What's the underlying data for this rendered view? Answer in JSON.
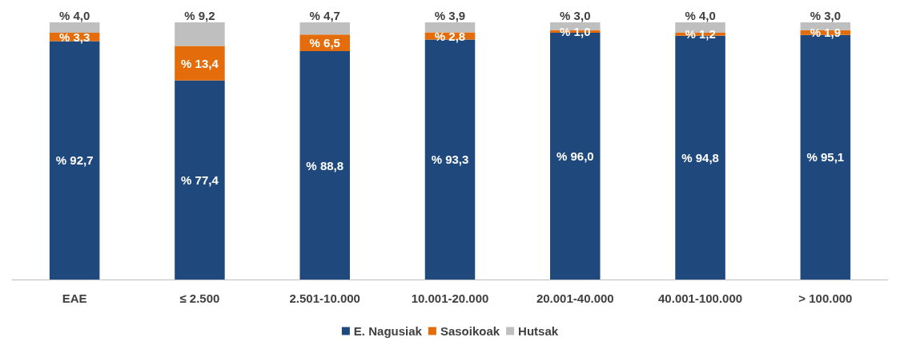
{
  "chart_data": {
    "type": "bar",
    "stacked": true,
    "categories": [
      "EAE",
      "≤ 2.500",
      "2.501-10.000",
      "10.001-20.000",
      "20.001-40.000",
      "40.001-100.000",
      "> 100.000"
    ],
    "series": [
      {
        "name": "E. Nagusiak",
        "color": "#1f497d",
        "values": [
          92.7,
          77.4,
          88.8,
          93.3,
          96.0,
          94.8,
          95.1
        ],
        "value_labels": [
          "% 92,7",
          "% 77,4",
          "% 88,8",
          "% 93,3",
          "% 96,0",
          "% 94,8",
          "% 95,1"
        ]
      },
      {
        "name": "Sasoikoak",
        "color": "#e46c0a",
        "values": [
          3.3,
          13.4,
          6.5,
          2.8,
          1.0,
          1.2,
          1.9
        ],
        "value_labels": [
          "% 3,3",
          "% 13,4",
          "% 6,5",
          "% 2,8",
          "% 1,0",
          "% 1,2",
          "% 1,9"
        ]
      },
      {
        "name": "Hutsak",
        "color": "#bfbfbf",
        "values": [
          4.0,
          9.2,
          4.7,
          3.9,
          3.0,
          4.0,
          3.0
        ],
        "value_labels": [
          "% 4,0",
          "% 9,2",
          "% 4,7",
          "% 3,9",
          "% 3,0",
          "% 4,0",
          "% 3,0"
        ]
      }
    ],
    "ylim": [
      0,
      100
    ],
    "tick_labels": "x",
    "grid": false,
    "legend": "bottom"
  }
}
